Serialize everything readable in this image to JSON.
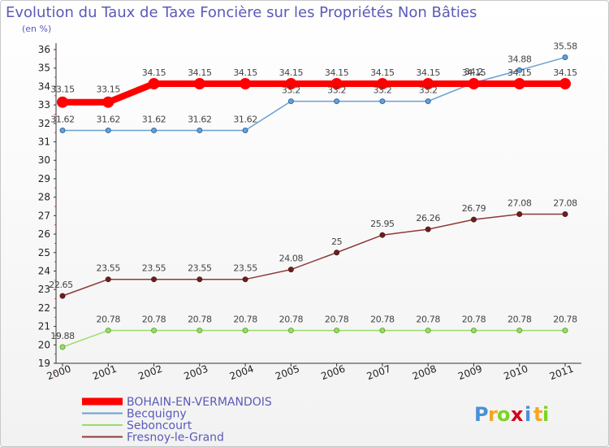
{
  "title": "Evolution du Taux de Taxe Foncière sur les Propriétés Non Bâties",
  "subtitle": "(en %)",
  "brand": {
    "letters": [
      "P",
      "r",
      "o",
      "x",
      "i",
      "t",
      "i"
    ],
    "colors": [
      "#4a90d9",
      "#f5a623",
      "#7ed321",
      "#d0021b",
      "#4a90d9",
      "#f5a623",
      "#7ed321"
    ]
  },
  "chart_data": {
    "type": "line",
    "x": [
      "2000",
      "2001",
      "2002",
      "2003",
      "2004",
      "2005",
      "2006",
      "2007",
      "2008",
      "2009",
      "2010",
      "2011"
    ],
    "ylim": [
      19,
      36
    ],
    "yticks": [
      19,
      20,
      21,
      22,
      23,
      24,
      25,
      26,
      27,
      28,
      29,
      30,
      31,
      32,
      33,
      34,
      35,
      36
    ],
    "grid": false,
    "legend_position": "bottom-left",
    "series": [
      {
        "name": "BOHAIN-EN-VERMANDOIS",
        "color": "#ff0000",
        "width": 8,
        "values": [
          33.15,
          33.15,
          34.15,
          34.15,
          34.15,
          34.15,
          34.15,
          34.15,
          34.15,
          34.15,
          34.15,
          34.15
        ],
        "labels": [
          "33.15",
          "33.15",
          "34.15",
          "34.15",
          "34.15",
          "34.15",
          "34.15",
          "34.15",
          "34.15",
          "34.15",
          "34.15",
          "34.15"
        ]
      },
      {
        "name": "Becquigny",
        "color": "#6aa0d0",
        "width": 1.5,
        "values": [
          31.62,
          31.62,
          31.62,
          31.62,
          31.62,
          33.2,
          33.2,
          33.2,
          33.2,
          34.2,
          34.88,
          35.58
        ],
        "labels": [
          "31.62",
          "31.62",
          "31.62",
          "31.62",
          "31.62",
          "33.2",
          "33.2",
          "33.2",
          "33.2",
          "34.2",
          "34.88",
          "35.58"
        ]
      },
      {
        "name": "Seboncourt",
        "color": "#99dd66",
        "width": 1.5,
        "values": [
          19.88,
          20.78,
          20.78,
          20.78,
          20.78,
          20.78,
          20.78,
          20.78,
          20.78,
          20.78,
          20.78,
          20.78
        ],
        "labels": [
          "19.88",
          "20.78",
          "20.78",
          "20.78",
          "20.78",
          "20.78",
          "20.78",
          "20.78",
          "20.78",
          "20.78",
          "20.78",
          "20.78"
        ]
      },
      {
        "name": "Fresnoy-le-Grand",
        "color": "#8b3a3a",
        "width": 1.5,
        "values": [
          22.65,
          23.55,
          23.55,
          23.55,
          23.55,
          24.08,
          25,
          25.95,
          26.26,
          26.79,
          27.08,
          27.08
        ],
        "labels": [
          "22.65",
          "23.55",
          "23.55",
          "23.55",
          "23.55",
          "24.08",
          "25",
          "25.95",
          "26.26",
          "26.79",
          "27.08",
          "27.08"
        ]
      }
    ]
  }
}
